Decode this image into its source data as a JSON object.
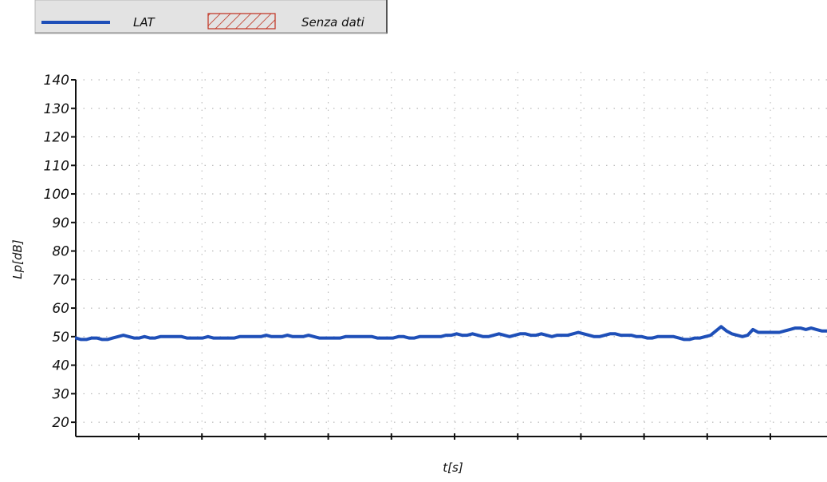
{
  "legend": {
    "items": [
      {
        "label": "LAT",
        "kind": "line",
        "color": "#1e4fb8"
      },
      {
        "label": "Senza dati",
        "kind": "hatch",
        "color": "#c0301e"
      }
    ]
  },
  "chart_data": {
    "type": "line",
    "xlabel": "t[s]",
    "ylabel": "Lp[dB]",
    "ylim": [
      15,
      140
    ],
    "yticks": [
      20,
      30,
      40,
      50,
      60,
      70,
      80,
      90,
      100,
      110,
      120,
      130,
      140
    ],
    "xticks_count": 11,
    "x_tick_labels_visible": false,
    "grid": "dotted",
    "legend_position": "top-left",
    "series": [
      {
        "name": "LAT",
        "color": "#1e4fb8",
        "values": [
          49.5,
          49,
          49,
          49.5,
          49.5,
          49,
          49,
          49.5,
          50,
          50.5,
          50,
          49.5,
          49.5,
          50,
          49.5,
          49.5,
          50,
          50,
          50,
          50,
          50,
          49.5,
          49.5,
          49.5,
          49.5,
          50,
          49.5,
          49.5,
          49.5,
          49.5,
          49.5,
          50,
          50,
          50,
          50,
          50,
          50.5,
          50,
          50,
          50,
          50.5,
          50,
          50,
          50,
          50.5,
          50,
          49.5,
          49.5,
          49.5,
          49.5,
          49.5,
          50,
          50,
          50,
          50,
          50,
          50,
          49.5,
          49.5,
          49.5,
          49.5,
          50,
          50,
          49.5,
          49.5,
          50,
          50,
          50,
          50,
          50,
          50.5,
          50.5,
          51,
          50.5,
          50.5,
          51,
          50.5,
          50,
          50,
          50.5,
          51,
          50.5,
          50,
          50.5,
          51,
          51,
          50.5,
          50.5,
          51,
          50.5,
          50,
          50.5,
          50.5,
          50.5,
          51,
          51.5,
          51,
          50.5,
          50,
          50,
          50.5,
          51,
          51,
          50.5,
          50.5,
          50.5,
          50,
          50,
          49.5,
          49.5,
          50,
          50,
          50,
          50,
          49.5,
          49,
          49,
          49.5,
          49.5,
          50,
          50.5,
          52,
          53.5,
          52,
          51,
          50.5,
          50,
          50.5,
          52.5,
          51.5,
          51.5,
          51.5,
          51.5,
          51.5,
          52,
          52.5,
          53,
          53,
          52.5,
          53,
          52.5,
          52,
          52
        ]
      }
    ]
  }
}
